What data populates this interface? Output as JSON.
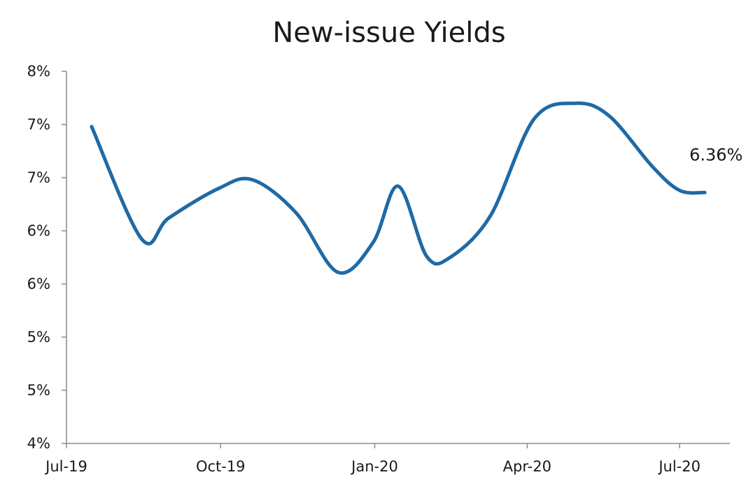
{
  "chart_data": {
    "type": "line",
    "title": "New-issue Yields",
    "xlabel": "",
    "ylabel": "",
    "x": [
      "2019-07-16",
      "2019-08-15",
      "2019-08-31",
      "2019-09-30",
      "2019-10-20",
      "2019-11-15",
      "2019-12-10",
      "2019-12-31",
      "2020-01-15",
      "2020-02-01",
      "2020-02-15",
      "2020-03-10",
      "2020-04-05",
      "2020-04-30",
      "2020-05-20",
      "2020-06-15",
      "2020-07-01",
      "2020-07-16"
    ],
    "series": [
      {
        "values": [
          6.98,
          5.92,
          6.12,
          6.4,
          6.48,
          6.17,
          5.61,
          5.89,
          6.42,
          5.76,
          5.75,
          6.14,
          7.05,
          7.2,
          7.08,
          6.6,
          6.38,
          6.36
        ]
      }
    ],
    "ylim": [
      4.0,
      7.5
    ],
    "yticks": [
      4.0,
      4.5,
      5.0,
      5.5,
      6.0,
      6.5,
      7.0,
      7.5
    ],
    "ytick_labels": [
      "4%",
      "5%",
      "5%",
      "6%",
      "6%",
      "7%",
      "7%",
      "8%"
    ],
    "xlim": [
      "2019-07-01",
      "2020-07-31"
    ],
    "xticks": [
      "2019-07-01",
      "2019-10-01",
      "2020-01-01",
      "2020-04-01",
      "2020-07-01"
    ],
    "xtick_labels": [
      "Jul-19",
      "Oct-19",
      "Jan-20",
      "Apr-20",
      "Jul-20"
    ],
    "annotations": [
      {
        "text": "6.36%",
        "x": "2020-07-16",
        "y": 6.36
      }
    ],
    "grid": false,
    "colors": {
      "series": "#1f6aa5",
      "axis": "#8c8c8c",
      "text": "#1a1a1a"
    }
  }
}
